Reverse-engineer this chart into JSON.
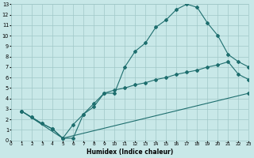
{
  "xlabel": "Humidex (Indice chaleur)",
  "xlim": [
    0,
    23
  ],
  "ylim": [
    0,
    13
  ],
  "xticks": [
    0,
    1,
    2,
    3,
    4,
    5,
    6,
    7,
    8,
    9,
    10,
    11,
    12,
    13,
    14,
    15,
    16,
    17,
    18,
    19,
    20,
    21,
    22,
    23
  ],
  "yticks": [
    0,
    1,
    2,
    3,
    4,
    5,
    6,
    7,
    8,
    9,
    10,
    11,
    12,
    13
  ],
  "bg": "#c8e8e8",
  "grid_color": "#a0c8c8",
  "lc": "#1e6e6e",
  "line1_x": [
    1,
    2,
    3,
    4,
    5,
    6,
    7,
    8,
    9,
    10,
    11,
    12,
    13,
    14,
    15,
    16,
    17,
    18,
    19,
    20,
    21,
    22,
    23
  ],
  "line1_y": [
    2.8,
    2.2,
    1.6,
    1.1,
    0.2,
    0.2,
    2.5,
    3.2,
    4.5,
    4.5,
    7.0,
    8.5,
    9.3,
    10.8,
    11.5,
    12.5,
    13.0,
    12.7,
    11.2,
    10.0,
    8.2,
    7.5,
    7.0
  ],
  "line2_x": [
    1,
    2,
    3,
    4,
    5,
    6,
    7,
    8,
    9,
    10,
    11,
    12,
    13,
    14,
    15,
    16,
    17,
    18,
    19,
    20,
    21,
    22,
    23
  ],
  "line2_y": [
    2.8,
    2.2,
    1.6,
    1.1,
    0.2,
    1.5,
    2.5,
    3.5,
    4.5,
    4.8,
    5.0,
    5.3,
    5.5,
    5.8,
    6.0,
    6.3,
    6.5,
    6.7,
    7.0,
    7.2,
    7.5,
    6.3,
    5.8
  ],
  "line3_x": [
    1,
    5,
    23
  ],
  "line3_y": [
    2.8,
    0.2,
    4.5
  ]
}
